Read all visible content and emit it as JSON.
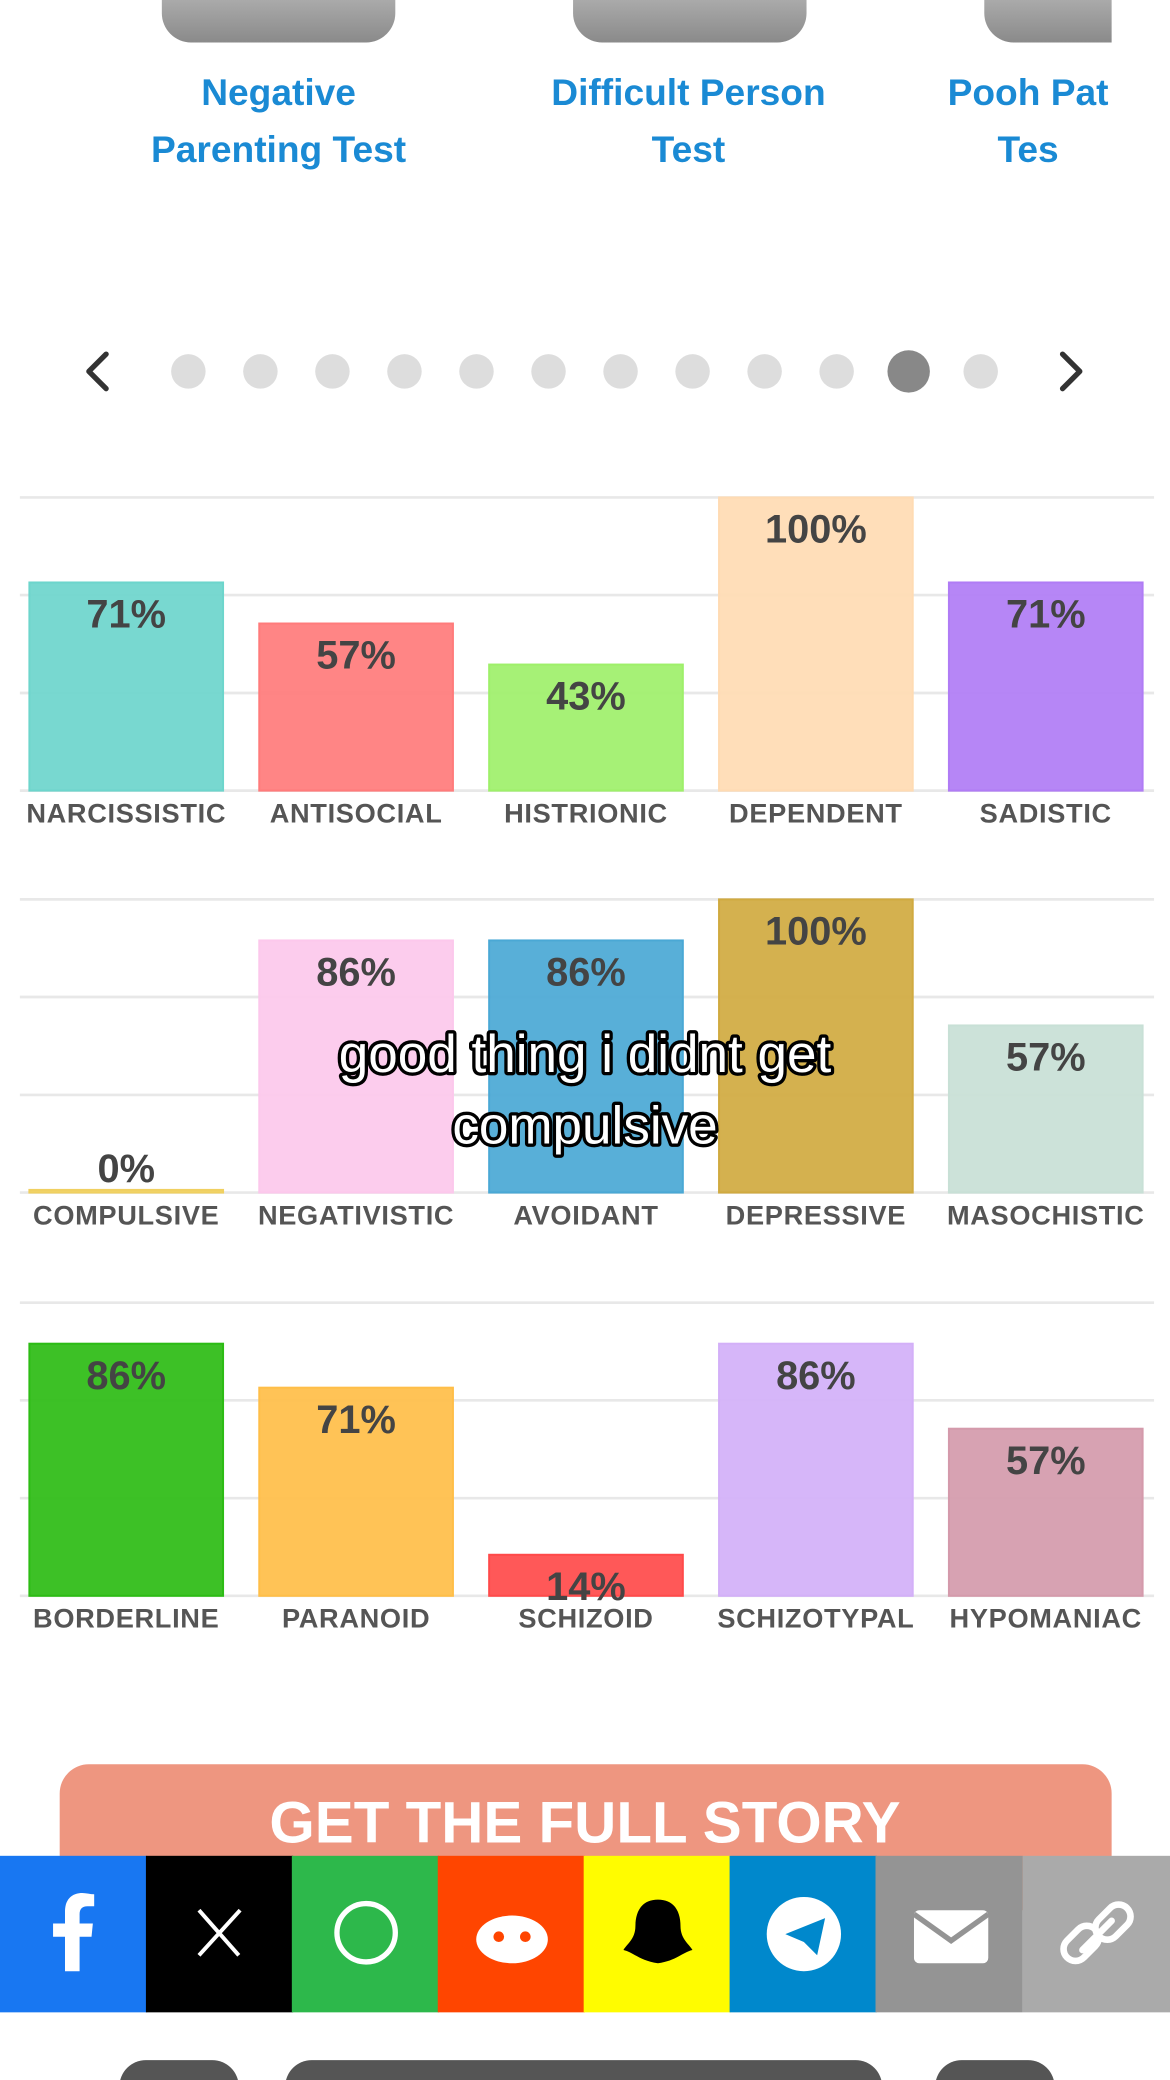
{
  "top_tests": [
    {
      "lines": [
        "Negative",
        "Parenting Test"
      ]
    },
    {
      "lines": [
        "Difficult Person",
        "Test"
      ]
    },
    {
      "lines": [
        "Pooh Pat",
        "Tes"
      ]
    }
  ],
  "chart_data": [
    {
      "type": "bar",
      "categories": [
        "NARCISSISTIC",
        "ANTISOCIAL",
        "HISTRIONIC",
        "DEPENDENT",
        "SADISTIC"
      ],
      "values": [
        71,
        57,
        43,
        100,
        71
      ],
      "value_labels": [
        "71%",
        "57%",
        "43%",
        "100%",
        "71%"
      ],
      "colors": [
        "#6dd5cc",
        "#ff7b7b",
        "#9ef06a",
        "#ffdbb3",
        "#b07cf5"
      ],
      "ylim": [
        0,
        100
      ],
      "yticks": [
        0,
        33.3,
        66.7,
        100
      ],
      "show_tick_labels": false,
      "grid": true
    },
    {
      "type": "bar",
      "categories": [
        "COMPULSIVE",
        "NEGATIVISTIC",
        "AVOIDANT",
        "DEPRESSIVE",
        "MASOCHISTIC"
      ],
      "values": [
        0,
        86,
        86,
        100,
        57
      ],
      "value_labels": [
        "0%",
        "86%",
        "86%",
        "100%",
        "57%"
      ],
      "colors": [
        "#f0d060",
        "#fcc8ec",
        "#4aa8d5",
        "#d0aa40",
        "#c8e0d6"
      ],
      "ylim": [
        0,
        100
      ],
      "yticks": [
        0,
        33.3,
        66.7,
        100
      ],
      "show_tick_labels": false,
      "grid": true
    },
    {
      "type": "bar",
      "categories": [
        "BORDERLINE",
        "PARANOID",
        "SCHIZOID",
        "SCHIZOTYPAL",
        "HYPOMANIAC"
      ],
      "values": [
        86,
        71,
        14,
        86,
        57
      ],
      "value_labels": [
        "86%",
        "71%",
        "14%",
        "86%",
        "57%"
      ],
      "colors": [
        "#2cbc14",
        "#ffbe48",
        "#ff4a4a",
        "#d3b0f8",
        "#d49aab"
      ],
      "ylim": [
        0,
        100
      ],
      "yticks": [
        0,
        33.3,
        66.7,
        100
      ],
      "show_tick_labels": false,
      "grid": true
    }
  ],
  "caption": [
    "good thing i didnt get",
    "compulsive"
  ],
  "button": "GET THE FULL STORY"
}
